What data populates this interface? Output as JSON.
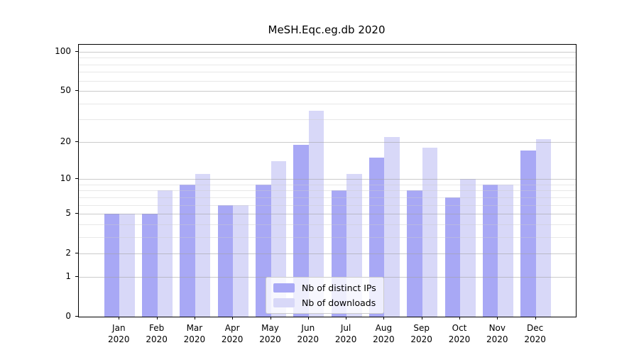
{
  "chart_data": {
    "type": "bar",
    "title": "MeSH.Eqc.eg.db 2020",
    "year": "2020",
    "categories": [
      "Jan",
      "Feb",
      "Mar",
      "Apr",
      "May",
      "Jun",
      "Jul",
      "Aug",
      "Sep",
      "Oct",
      "Nov",
      "Dec"
    ],
    "series": [
      {
        "name": "Nb of distinct IPs",
        "color": "#a8a8f5",
        "values": [
          5,
          5,
          9,
          6,
          9,
          19,
          8,
          15,
          8,
          7,
          9,
          17
        ]
      },
      {
        "name": "Nb of downloads",
        "color": "#d8d8f8",
        "values": [
          5,
          8,
          11,
          6,
          14,
          35,
          11,
          22,
          18,
          10,
          9,
          21
        ]
      }
    ],
    "yticks": [
      0,
      1,
      2,
      5,
      10,
      20,
      50,
      100
    ],
    "minor_yticks": [
      3,
      4,
      6,
      7,
      8,
      9,
      30,
      40,
      60,
      70,
      80,
      90
    ],
    "scale": "log1p",
    "ylim": [
      0,
      100
    ],
    "xlabel": "",
    "ylabel": "",
    "grid": true,
    "legend_position": "lower center"
  }
}
